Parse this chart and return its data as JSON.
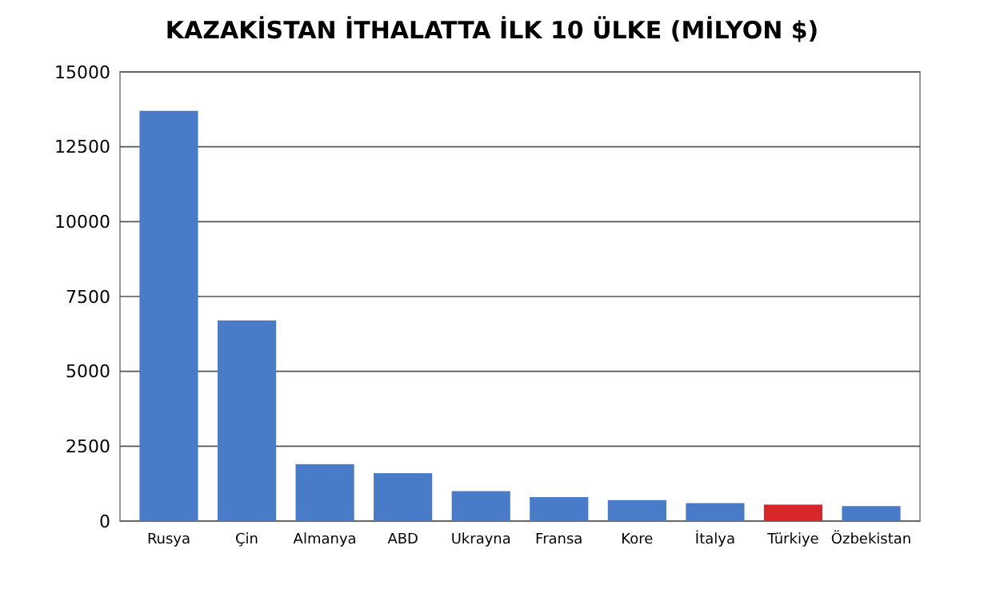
{
  "chart_data": {
    "type": "bar",
    "title": "KAZAKİSTAN İTHALATTA İLK 10 ÜLKE (MİLYON $)",
    "categories": [
      "Rusya",
      "Çin",
      "Almanya",
      "ABD",
      "Ukrayna",
      "Fransa",
      "Kore",
      "İtalya",
      "Türkiye",
      "Özbekistan"
    ],
    "values": [
      13700,
      6700,
      1900,
      1600,
      1000,
      800,
      700,
      600,
      550,
      500
    ],
    "colors": [
      "#4a7bc8",
      "#4a7bc8",
      "#4a7bc8",
      "#4a7bc8",
      "#4a7bc8",
      "#4a7bc8",
      "#4a7bc8",
      "#4a7bc8",
      "#d9262b",
      "#4a7bc8"
    ],
    "ylim": [
      0,
      15000
    ],
    "yticks": [
      0,
      2500,
      5000,
      7500,
      10000,
      12500,
      15000
    ],
    "grid": "y"
  }
}
